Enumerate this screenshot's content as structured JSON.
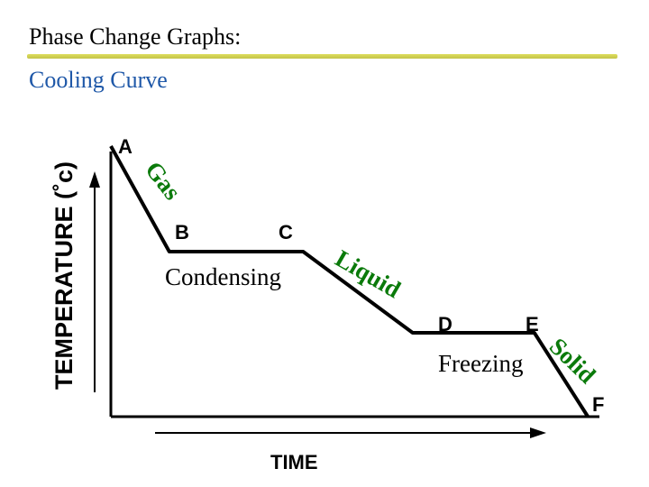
{
  "header": {
    "title": "Phase Change Graphs:",
    "subtitle": "Cooling Curve",
    "subtitle_color": "#1f58a8"
  },
  "chart_data": {
    "type": "line",
    "xlabel": "TIME",
    "ylabel": "TEMPERATURE (˚c)",
    "points": [
      {
        "label": "A",
        "x": 0,
        "y": 10
      },
      {
        "label": "B",
        "x": 1.2,
        "y": 6.1
      },
      {
        "label": "C",
        "x": 3.95,
        "y": 6.1
      },
      {
        "label": "D",
        "x": 6.2,
        "y": 3.1
      },
      {
        "label": "E",
        "x": 8.7,
        "y": 3.1
      },
      {
        "label": "F",
        "x": 9.8,
        "y": 0
      }
    ],
    "phase_labels": [
      "Gas",
      "Liquid",
      "Solid"
    ],
    "process_labels": [
      "Condensing",
      "Freezing"
    ],
    "phase_label_color": "#0a7a0a",
    "line_color": "#000000"
  }
}
